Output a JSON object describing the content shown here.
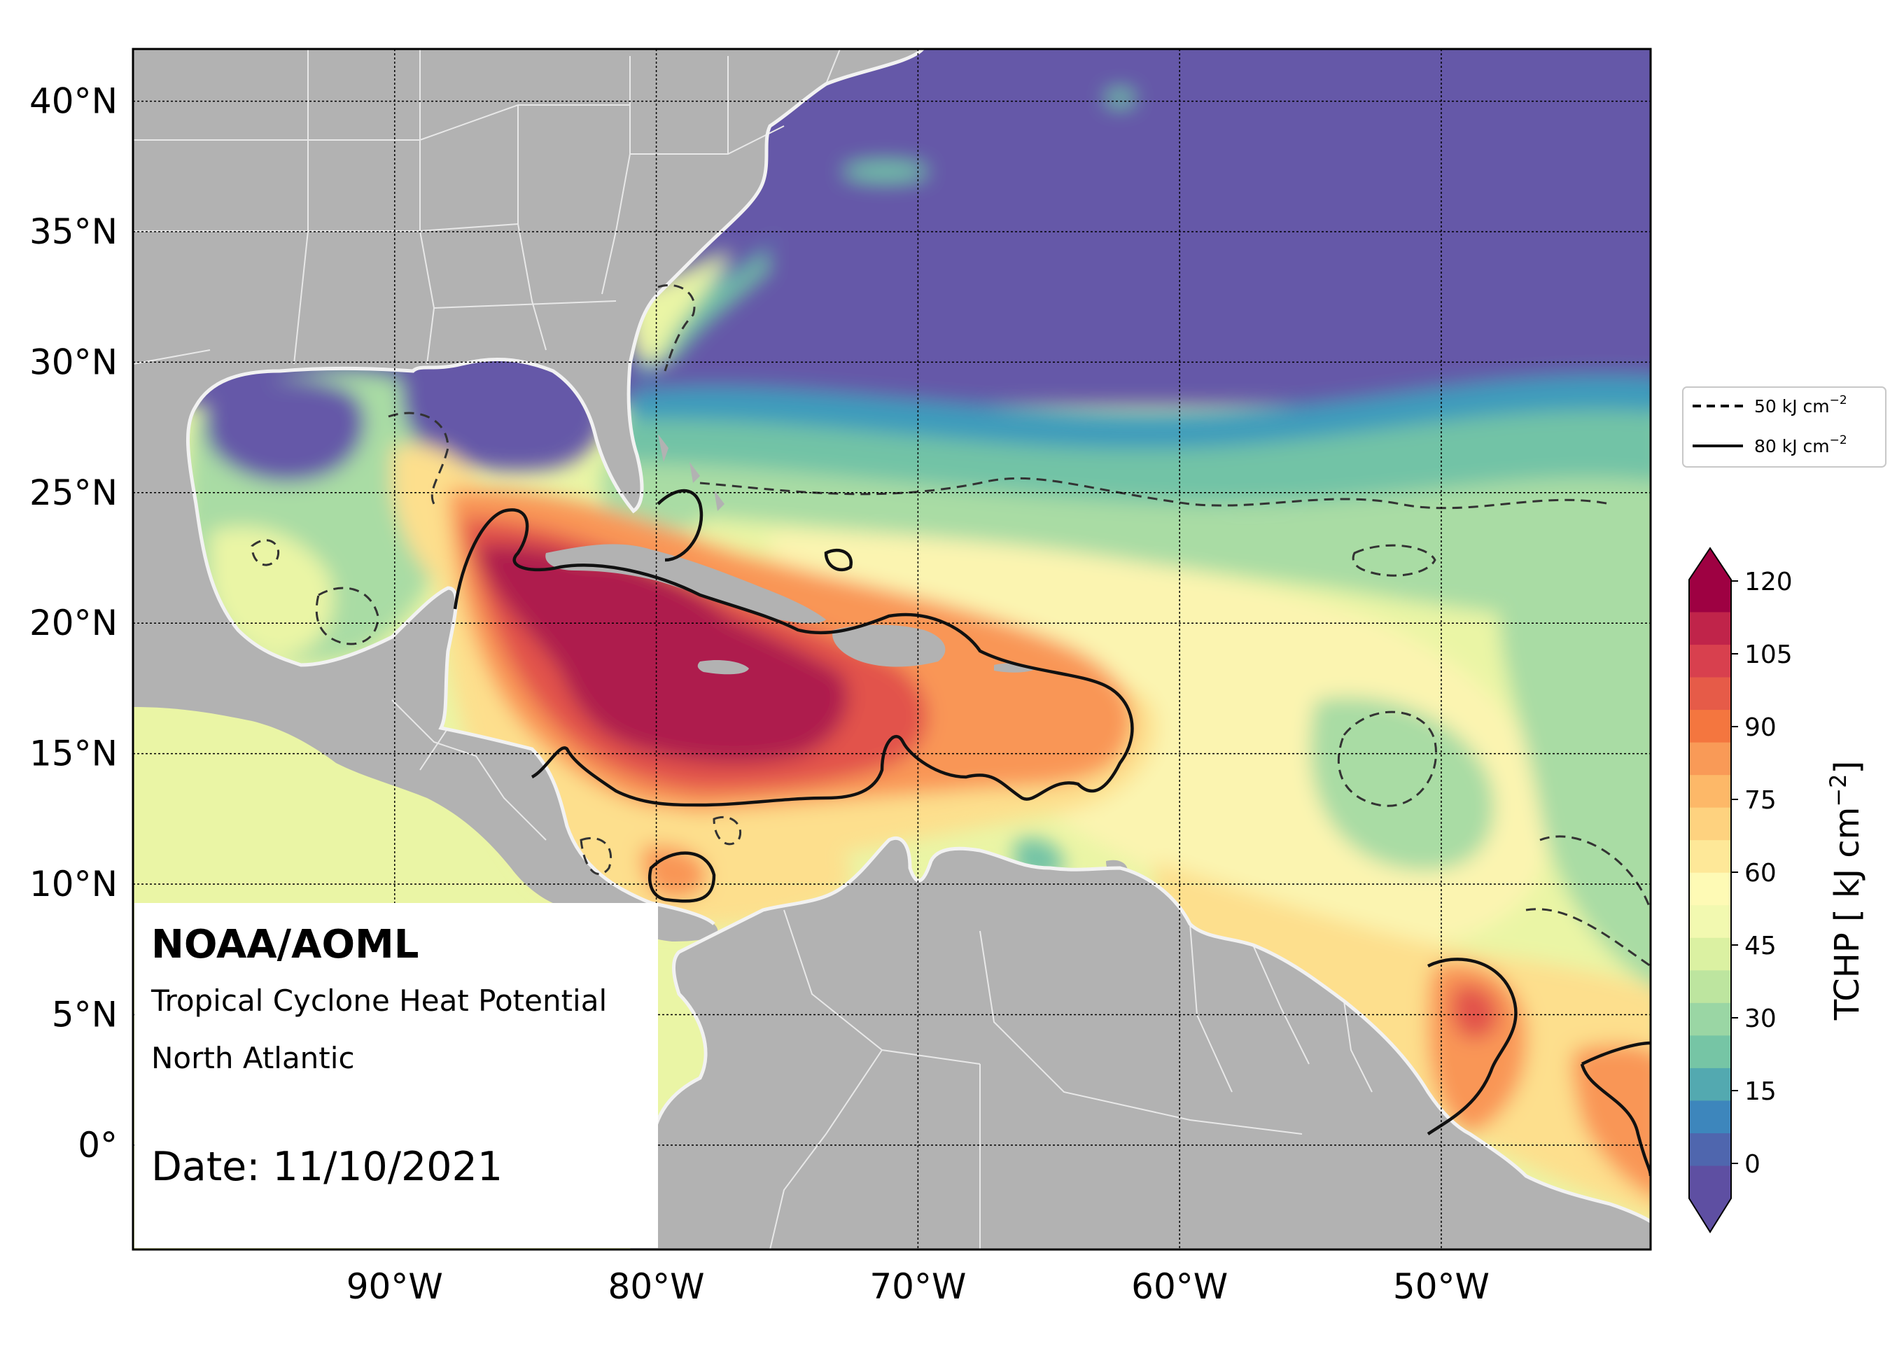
{
  "map": {
    "title": "NOAA/AOML",
    "subtitle_line1": "Tropical Cyclone Heat Potential",
    "subtitle_line2": "North Atlantic",
    "date_text": "Date: 11/10/2021",
    "region_lon": [
      -100,
      -42
    ],
    "region_lat": [
      -4,
      42
    ],
    "lat_ticks": [
      "40°N",
      "35°N",
      "30°N",
      "25°N",
      "20°N",
      "15°N",
      "10°N",
      "5°N",
      "0°"
    ],
    "lon_ticks": [
      "90°W",
      "80°W",
      "70°W",
      "60°W",
      "50°W"
    ],
    "colors": {
      "land": "#b2b2b2",
      "coast": "#ededed",
      "cold": "#6558a8",
      "cool": "#3d9bbc",
      "teal": "#72c3a6",
      "green": "#a9dca4",
      "pale": "#eaf5a5",
      "cream": "#fbf4b0",
      "yellow": "#fddf8d",
      "orange": "#f99657",
      "red": "#e2524b",
      "crimson": "#ae1a4e"
    }
  },
  "legend": {
    "entries": [
      {
        "style": "dashed",
        "label": "50 kJ cm",
        "sup": "−2"
      },
      {
        "style": "solid",
        "label": "80 kJ cm",
        "sup": "−2"
      }
    ]
  },
  "colorbar": {
    "title": "TCHP [ kJ cm",
    "title_sup": "−2",
    "title_end": "]",
    "tick_labels": [
      "120",
      "105",
      "90",
      "75",
      "60",
      "45",
      "30",
      "15",
      "0"
    ],
    "levels": [
      "#9e0142",
      "#c0244a",
      "#d8404e",
      "#e65b48",
      "#f4763f",
      "#f99a57",
      "#fdb868",
      "#fed27f",
      "#fee898",
      "#fefab5",
      "#f2f9b0",
      "#dbf1a2",
      "#bde59f",
      "#9ad6a4",
      "#76c5a5",
      "#53a9b0",
      "#3d86bc",
      "#4f66ae",
      "#5e4fa2"
    ]
  }
}
